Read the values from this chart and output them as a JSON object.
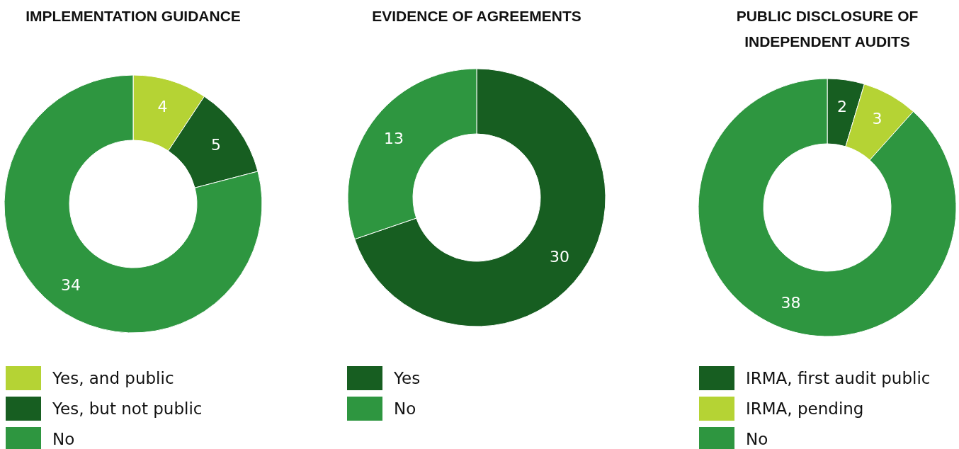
{
  "chart_data": [
    {
      "type": "donut",
      "title": "IMPLEMENTATION GUIDANCE",
      "categories": [
        "Yes, and public",
        "Yes, but not public",
        "No"
      ],
      "values": [
        4,
        5,
        34
      ],
      "colors": [
        "#b5d334",
        "#175e21",
        "#2e9640"
      ],
      "data_labels": true,
      "legend": "bottom"
    },
    {
      "type": "donut",
      "title": "EVIDENCE OF AGREEMENTS",
      "categories": [
        "Yes",
        "No"
      ],
      "values": [
        30,
        13
      ],
      "colors": [
        "#175e21",
        "#2e9640"
      ],
      "data_labels": true,
      "legend": "bottom"
    },
    {
      "type": "donut",
      "title": "PUBLIC DISCLOSURE OF INDEPENDENT AUDITS",
      "categories": [
        "IRMA, first audit public",
        "IRMA, pending",
        "No"
      ],
      "values": [
        2,
        3,
        38
      ],
      "colors": [
        "#175e21",
        "#b5d334",
        "#2e9640"
      ],
      "data_labels": true,
      "legend": "bottom"
    }
  ]
}
